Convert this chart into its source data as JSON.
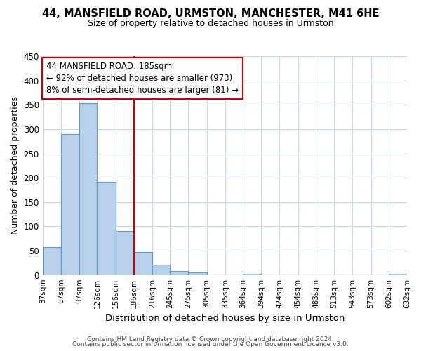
{
  "title": "44, MANSFIELD ROAD, URMSTON, MANCHESTER, M41 6HE",
  "subtitle": "Size of property relative to detached houses in Urmston",
  "xlabel": "Distribution of detached houses by size in Urmston",
  "ylabel": "Number of detached properties",
  "bar_edges": [
    37,
    67,
    97,
    126,
    156,
    186,
    216,
    245,
    275,
    305,
    335,
    364,
    394,
    424,
    454,
    483,
    513,
    543,
    573,
    602,
    632
  ],
  "bar_heights": [
    57,
    290,
    353,
    192,
    91,
    47,
    21,
    8,
    5,
    0,
    0,
    2,
    0,
    0,
    0,
    0,
    0,
    0,
    0,
    3
  ],
  "tick_labels": [
    "37sqm",
    "67sqm",
    "97sqm",
    "126sqm",
    "156sqm",
    "186sqm",
    "216sqm",
    "245sqm",
    "275sqm",
    "305sqm",
    "335sqm",
    "364sqm",
    "394sqm",
    "424sqm",
    "454sqm",
    "483sqm",
    "513sqm",
    "543sqm",
    "573sqm",
    "602sqm",
    "632sqm"
  ],
  "bar_color": "#b8d0ea",
  "bar_edge_color": "#5b9bd5",
  "vline_x": 186,
  "vline_color": "#cc0000",
  "annotation_line1": "44 MANSFIELD ROAD: 185sqm",
  "annotation_line2": "← 92% of detached houses are smaller (973)",
  "annotation_line3": "8% of semi-detached houses are larger (81) →",
  "annotation_box_color": "#ffffff",
  "annotation_box_edge": "#cc0000",
  "ylim": [
    0,
    450
  ],
  "yticks": [
    0,
    50,
    100,
    150,
    200,
    250,
    300,
    350,
    400,
    450
  ],
  "footer1": "Contains HM Land Registry data © Crown copyright and database right 2024.",
  "footer2": "Contains public sector information licensed under the Open Government Licence v3.0.",
  "bg_color": "#ffffff",
  "grid_color": "#c8d8e8"
}
